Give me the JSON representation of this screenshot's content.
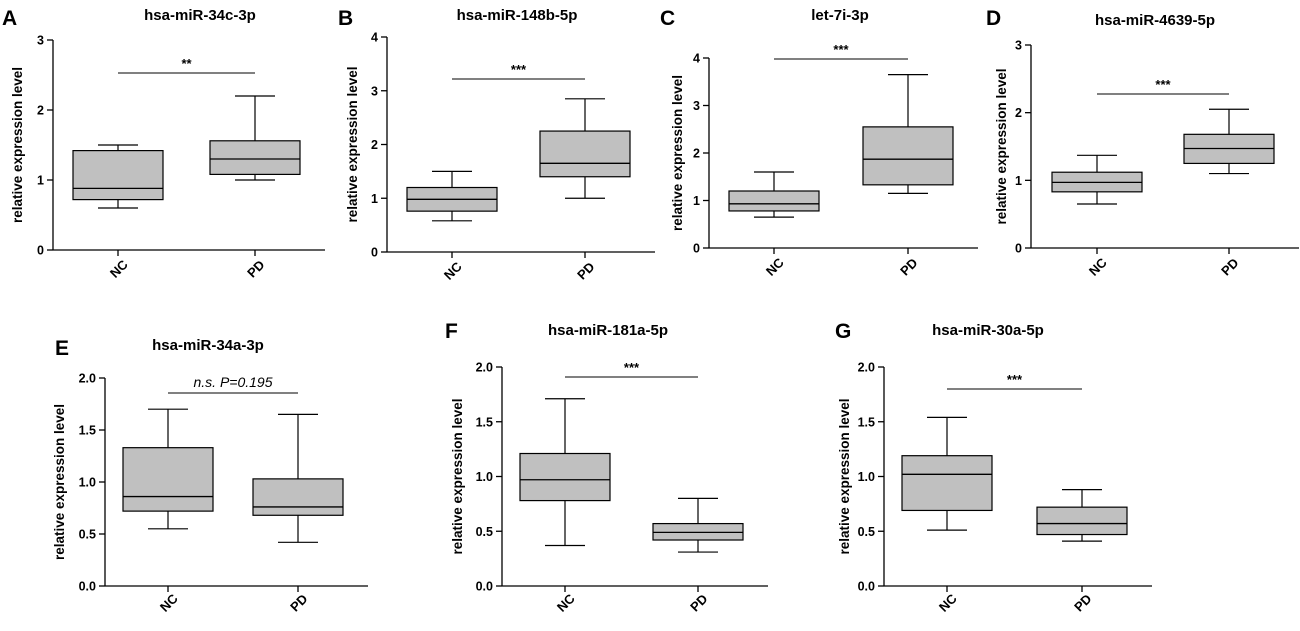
{
  "chart_data": [
    {
      "type": "box",
      "panel": "A",
      "title": "hsa-miR-34c-3p",
      "ylabel": "relative expression level",
      "xlabel": "",
      "ylim": [
        0,
        3
      ],
      "yticks": [
        "0",
        "1",
        "2",
        "3"
      ],
      "categories": [
        "NC",
        "PD"
      ],
      "boxes": [
        {
          "group": "NC",
          "min": 0.6,
          "q1": 0.72,
          "median": 0.88,
          "q3": 1.42,
          "max": 1.5
        },
        {
          "group": "PD",
          "min": 1.0,
          "q1": 1.08,
          "median": 1.3,
          "q3": 1.56,
          "max": 2.2
        }
      ],
      "significance": "**"
    },
    {
      "type": "box",
      "panel": "B",
      "title": "hsa-miR-148b-5p",
      "ylabel": "relative expression level",
      "xlabel": "",
      "ylim": [
        0,
        4
      ],
      "yticks": [
        "0",
        "1",
        "2",
        "3",
        "4"
      ],
      "categories": [
        "NC",
        "PD"
      ],
      "boxes": [
        {
          "group": "NC",
          "min": 0.58,
          "q1": 0.76,
          "median": 0.98,
          "q3": 1.2,
          "max": 1.5
        },
        {
          "group": "PD",
          "min": 1.0,
          "q1": 1.4,
          "median": 1.65,
          "q3": 2.25,
          "max": 2.85
        }
      ],
      "significance": "***"
    },
    {
      "type": "box",
      "panel": "C",
      "title": "let-7i-3p",
      "ylabel": "relative expression level",
      "xlabel": "",
      "ylim": [
        0,
        4
      ],
      "yticks": [
        "0",
        "1",
        "2",
        "3",
        "4"
      ],
      "categories": [
        "NC",
        "PD"
      ],
      "boxes": [
        {
          "group": "NC",
          "min": 0.65,
          "q1": 0.78,
          "median": 0.93,
          "q3": 1.2,
          "max": 1.6
        },
        {
          "group": "PD",
          "min": 1.15,
          "q1": 1.33,
          "median": 1.87,
          "q3": 2.55,
          "max": 3.65
        }
      ],
      "significance": "***"
    },
    {
      "type": "box",
      "panel": "D",
      "title": "hsa-miR-4639-5p",
      "ylabel": "relative expression level",
      "xlabel": "",
      "ylim": [
        0,
        3
      ],
      "yticks": [
        "0",
        "1",
        "2",
        "3"
      ],
      "categories": [
        "NC",
        "PD"
      ],
      "boxes": [
        {
          "group": "NC",
          "min": 0.65,
          "q1": 0.83,
          "median": 0.97,
          "q3": 1.12,
          "max": 1.37
        },
        {
          "group": "PD",
          "min": 1.1,
          "q1": 1.25,
          "median": 1.47,
          "q3": 1.68,
          "max": 2.05
        }
      ],
      "significance": "***"
    },
    {
      "type": "box",
      "panel": "E",
      "title": "hsa-miR-34a-3p",
      "ylabel": "relative expression level",
      "xlabel": "",
      "ylim": [
        0,
        2
      ],
      "yticks": [
        "0.0",
        "0.5",
        "1.0",
        "1.5",
        "2.0"
      ],
      "categories": [
        "NC",
        "PD"
      ],
      "boxes": [
        {
          "group": "NC",
          "min": 0.55,
          "q1": 0.72,
          "median": 0.86,
          "q3": 1.33,
          "max": 1.7
        },
        {
          "group": "PD",
          "min": 0.42,
          "q1": 0.68,
          "median": 0.76,
          "q3": 1.03,
          "max": 1.65
        }
      ],
      "significance": "n.s. P=0.195"
    },
    {
      "type": "box",
      "panel": "F",
      "title": "hsa-miR-181a-5p",
      "ylabel": "relative expression level",
      "xlabel": "",
      "ylim": [
        0,
        2
      ],
      "yticks": [
        "0.0",
        "0.5",
        "1.0",
        "1.5",
        "2.0"
      ],
      "categories": [
        "NC",
        "PD"
      ],
      "boxes": [
        {
          "group": "NC",
          "min": 0.37,
          "q1": 0.78,
          "median": 0.97,
          "q3": 1.21,
          "max": 1.71
        },
        {
          "group": "PD",
          "min": 0.31,
          "q1": 0.42,
          "median": 0.49,
          "q3": 0.57,
          "max": 0.8
        }
      ],
      "significance": "***"
    },
    {
      "type": "box",
      "panel": "G",
      "title": "hsa-miR-30a-5p",
      "ylabel": "relative expression level",
      "xlabel": "",
      "ylim": [
        0,
        2
      ],
      "yticks": [
        "0.0",
        "0.5",
        "1.0",
        "1.5",
        "2.0"
      ],
      "categories": [
        "NC",
        "PD"
      ],
      "boxes": [
        {
          "group": "NC",
          "min": 0.51,
          "q1": 0.69,
          "median": 1.02,
          "q3": 1.19,
          "max": 1.54
        },
        {
          "group": "PD",
          "min": 0.41,
          "q1": 0.47,
          "median": 0.57,
          "q3": 0.72,
          "max": 0.88
        }
      ],
      "significance": "***"
    }
  ],
  "colors": {
    "box_fill": "#c0c0c0",
    "stroke": "#000000",
    "background": "#ffffff"
  }
}
